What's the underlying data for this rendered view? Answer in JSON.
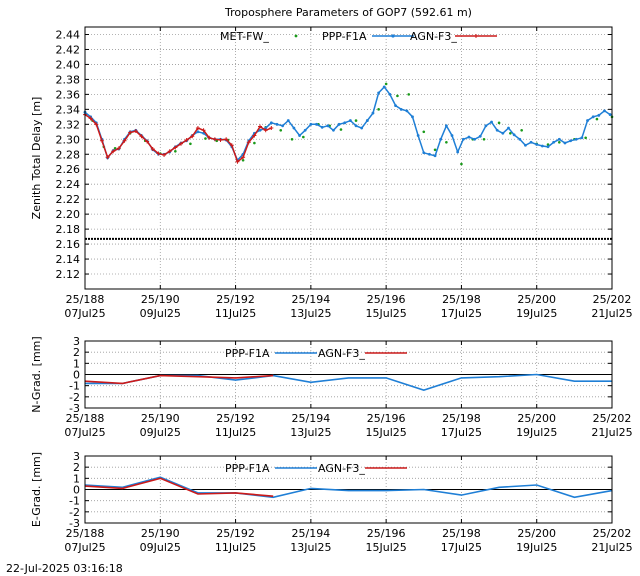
{
  "footer": {
    "timestamp": "22-Jul-2025 03:16:18"
  },
  "chart_data": [
    {
      "type": "scatter",
      "title": "Troposphere Parameters of GOP7 (592.61 m)",
      "xlabel": "",
      "ylabel": "Zenith Total Delay [m]",
      "xlim": [
        188,
        202
      ],
      "ylim": [
        2.1,
        2.45
      ],
      "yticks": [
        2.12,
        2.14,
        2.16,
        2.18,
        2.2,
        2.22,
        2.24,
        2.26,
        2.28,
        2.3,
        2.32,
        2.34,
        2.36,
        2.38,
        2.4,
        2.42,
        2.44
      ],
      "xticks": [
        {
          "x": 188,
          "top": "25/188",
          "bottom": "07Jul25"
        },
        {
          "x": 190,
          "top": "25/190",
          "bottom": "09Jul25"
        },
        {
          "x": 192,
          "top": "25/192",
          "bottom": "11Jul25"
        },
        {
          "x": 194,
          "top": "25/194",
          "bottom": "13Jul25"
        },
        {
          "x": 196,
          "top": "25/196",
          "bottom": "15Jul25"
        },
        {
          "x": 198,
          "top": "25/198",
          "bottom": "17Jul25"
        },
        {
          "x": 200,
          "top": "25/200",
          "bottom": "19Jul25"
        },
        {
          "x": 202,
          "top": "25/202",
          "bottom": "21Jul25"
        }
      ],
      "grid": true,
      "legend": "top",
      "series": [
        {
          "name": "MET-FW_",
          "style": "dots",
          "color": "#1a9a1a",
          "x": [
            188.0,
            188.2,
            188.5,
            188.8,
            189.2,
            189.6,
            190.0,
            190.4,
            190.8,
            191.2,
            191.5,
            191.8,
            192.2,
            192.5,
            192.8,
            193.2,
            193.5,
            193.8,
            194.2,
            194.5,
            194.8,
            195.2,
            195.5,
            195.8,
            196.0,
            196.3,
            196.6,
            197.0,
            197.3,
            197.6,
            198.0,
            198.3,
            198.6,
            199.0,
            199.3,
            199.6,
            200.0,
            200.3,
            200.6,
            201.0,
            201.3,
            201.6,
            202.0
          ],
          "y": [
            2.336,
            2.325,
            2.29,
            2.288,
            2.308,
            2.298,
            2.281,
            2.284,
            2.294,
            2.301,
            2.298,
            2.299,
            2.272,
            2.295,
            2.316,
            2.312,
            2.3,
            2.303,
            2.32,
            2.318,
            2.313,
            2.325,
            2.325,
            2.34,
            2.374,
            2.358,
            2.36,
            2.31,
            2.286,
            2.296,
            2.267,
            2.3,
            2.3,
            2.322,
            2.308,
            2.312,
            2.294,
            2.293,
            2.296,
            2.3,
            2.302,
            2.327,
            2.33
          ]
        },
        {
          "name": "PPP-F1A",
          "style": "line-dots",
          "color": "#1f7fd6",
          "x": [
            188.0,
            188.15,
            188.3,
            188.45,
            188.6,
            188.75,
            188.9,
            189.05,
            189.2,
            189.35,
            189.5,
            189.65,
            189.8,
            189.95,
            190.1,
            190.25,
            190.4,
            190.55,
            190.7,
            190.85,
            191.0,
            191.15,
            191.3,
            191.45,
            191.6,
            191.75,
            191.9,
            192.05,
            192.2,
            192.35,
            192.5,
            192.65,
            192.8,
            192.95,
            193.1,
            193.25,
            193.4,
            193.55,
            193.7,
            193.85,
            194.0,
            194.15,
            194.3,
            194.45,
            194.6,
            194.75,
            194.9,
            195.05,
            195.2,
            195.35,
            195.5,
            195.65,
            195.8,
            195.95,
            196.1,
            196.25,
            196.4,
            196.55,
            196.7,
            196.85,
            197.0,
            197.15,
            197.3,
            197.45,
            197.6,
            197.75,
            197.9,
            198.05,
            198.2,
            198.35,
            198.5,
            198.65,
            198.8,
            198.95,
            199.1,
            199.25,
            199.4,
            199.55,
            199.7,
            199.85,
            200.0,
            200.15,
            200.3,
            200.45,
            200.6,
            200.75,
            200.9,
            201.05,
            201.2,
            201.35,
            201.5,
            201.65,
            201.8,
            201.95
          ],
          "y": [
            2.336,
            2.33,
            2.322,
            2.3,
            2.275,
            2.285,
            2.287,
            2.3,
            2.31,
            2.312,
            2.305,
            2.298,
            2.286,
            2.28,
            2.28,
            2.283,
            2.29,
            2.295,
            2.298,
            2.305,
            2.31,
            2.308,
            2.302,
            2.3,
            2.3,
            2.299,
            2.29,
            2.272,
            2.28,
            2.298,
            2.308,
            2.312,
            2.315,
            2.322,
            2.32,
            2.318,
            2.325,
            2.315,
            2.305,
            2.312,
            2.32,
            2.32,
            2.316,
            2.318,
            2.312,
            2.32,
            2.322,
            2.325,
            2.318,
            2.315,
            2.325,
            2.335,
            2.362,
            2.37,
            2.36,
            2.345,
            2.34,
            2.338,
            2.33,
            2.305,
            2.282,
            2.28,
            2.278,
            2.3,
            2.318,
            2.305,
            2.283,
            2.3,
            2.303,
            2.3,
            2.304,
            2.318,
            2.323,
            2.312,
            2.308,
            2.315,
            2.306,
            2.3,
            2.292,
            2.296,
            2.293,
            2.291,
            2.29,
            2.296,
            2.3,
            2.295,
            2.298,
            2.3,
            2.302,
            2.325,
            2.33,
            2.332,
            2.338,
            2.333
          ]
        },
        {
          "name": "AGN-F3_",
          "style": "line-plus",
          "color": "#cc1a1a",
          "x": [
            188.0,
            188.15,
            188.3,
            188.45,
            188.6,
            188.75,
            188.9,
            189.05,
            189.2,
            189.35,
            189.5,
            189.65,
            189.8,
            189.95,
            190.1,
            190.25,
            190.4,
            190.55,
            190.7,
            190.85,
            191.0,
            191.15,
            191.3,
            191.45,
            191.6,
            191.75,
            191.9,
            192.05,
            192.2,
            192.35,
            192.5,
            192.65,
            192.8,
            192.95
          ],
          "y": [
            2.333,
            2.328,
            2.32,
            2.298,
            2.276,
            2.284,
            2.288,
            2.298,
            2.309,
            2.311,
            2.304,
            2.297,
            2.287,
            2.281,
            2.279,
            2.284,
            2.289,
            2.294,
            2.299,
            2.304,
            2.315,
            2.312,
            2.302,
            2.3,
            2.299,
            2.3,
            2.292,
            2.27,
            2.276,
            2.296,
            2.305,
            2.317,
            2.312,
            2.315
          ]
        },
        {
          "name": "baseline",
          "style": "dotted-line",
          "color": "#000000",
          "x": [
            188.0,
            202.0
          ],
          "y": [
            2.167,
            2.167
          ]
        }
      ]
    },
    {
      "type": "line",
      "title": "",
      "ylabel": "N-Grad. [mm]",
      "xlim": [
        188,
        202
      ],
      "ylim": [
        -3,
        3
      ],
      "yticks": [
        -3,
        -2,
        -1,
        0,
        1,
        2,
        3
      ],
      "xticks": [
        {
          "x": 188,
          "top": "25/188",
          "bottom": "07Jul25"
        },
        {
          "x": 190,
          "top": "25/190",
          "bottom": "09Jul25"
        },
        {
          "x": 192,
          "top": "25/192",
          "bottom": "11Jul25"
        },
        {
          "x": 194,
          "top": "25/194",
          "bottom": "13Jul25"
        },
        {
          "x": 196,
          "top": "25/196",
          "bottom": "15Jul25"
        },
        {
          "x": 198,
          "top": "25/198",
          "bottom": "17Jul25"
        },
        {
          "x": 200,
          "top": "25/200",
          "bottom": "19Jul25"
        },
        {
          "x": 202,
          "top": "25/202",
          "bottom": "21Jul25"
        }
      ],
      "grid": true,
      "legend": "top",
      "series": [
        {
          "name": "PPP-F1A",
          "color": "#1f7fd6",
          "x": [
            188,
            189,
            190,
            191,
            192,
            193,
            194,
            195,
            196,
            197,
            198,
            199,
            200,
            201,
            202
          ],
          "y": [
            -0.8,
            -0.8,
            -0.1,
            -0.1,
            -0.5,
            -0.1,
            -0.7,
            -0.3,
            -0.3,
            -1.4,
            -0.3,
            -0.2,
            0.0,
            -0.6,
            -0.6
          ]
        },
        {
          "name": "AGN-F3_",
          "color": "#cc1a1a",
          "x": [
            188,
            189,
            190,
            191,
            192,
            193
          ],
          "y": [
            -0.6,
            -0.8,
            -0.1,
            -0.2,
            -0.3,
            -0.1
          ]
        }
      ]
    },
    {
      "type": "line",
      "title": "",
      "ylabel": "E-Grad. [mm]",
      "xlim": [
        188,
        202
      ],
      "ylim": [
        -3,
        3
      ],
      "yticks": [
        -3,
        -2,
        -1,
        0,
        1,
        2,
        3
      ],
      "xticks": [
        {
          "x": 188,
          "top": "25/188",
          "bottom": "07Jul25"
        },
        {
          "x": 190,
          "top": "25/190",
          "bottom": "09Jul25"
        },
        {
          "x": 192,
          "top": "25/192",
          "bottom": "11Jul25"
        },
        {
          "x": 194,
          "top": "25/194",
          "bottom": "13Jul25"
        },
        {
          "x": 196,
          "top": "25/196",
          "bottom": "15Jul25"
        },
        {
          "x": 198,
          "top": "25/198",
          "bottom": "17Jul25"
        },
        {
          "x": 200,
          "top": "25/200",
          "bottom": "19Jul25"
        },
        {
          "x": 202,
          "top": "25/202",
          "bottom": "21Jul25"
        }
      ],
      "grid": true,
      "legend": "top",
      "series": [
        {
          "name": "PPP-F1A",
          "color": "#1f7fd6",
          "x": [
            188,
            189,
            190,
            191,
            192,
            193,
            194,
            195,
            196,
            197,
            198,
            199,
            200,
            201,
            202
          ],
          "y": [
            0.4,
            0.2,
            1.1,
            -0.3,
            -0.3,
            -0.7,
            0.1,
            -0.1,
            -0.1,
            0.0,
            -0.5,
            0.2,
            0.4,
            -0.7,
            -0.1
          ]
        },
        {
          "name": "AGN-F3_",
          "color": "#cc1a1a",
          "x": [
            188,
            189,
            190,
            191,
            192,
            193
          ],
          "y": [
            0.3,
            0.1,
            1.0,
            -0.4,
            -0.3,
            -0.6
          ]
        }
      ]
    }
  ]
}
